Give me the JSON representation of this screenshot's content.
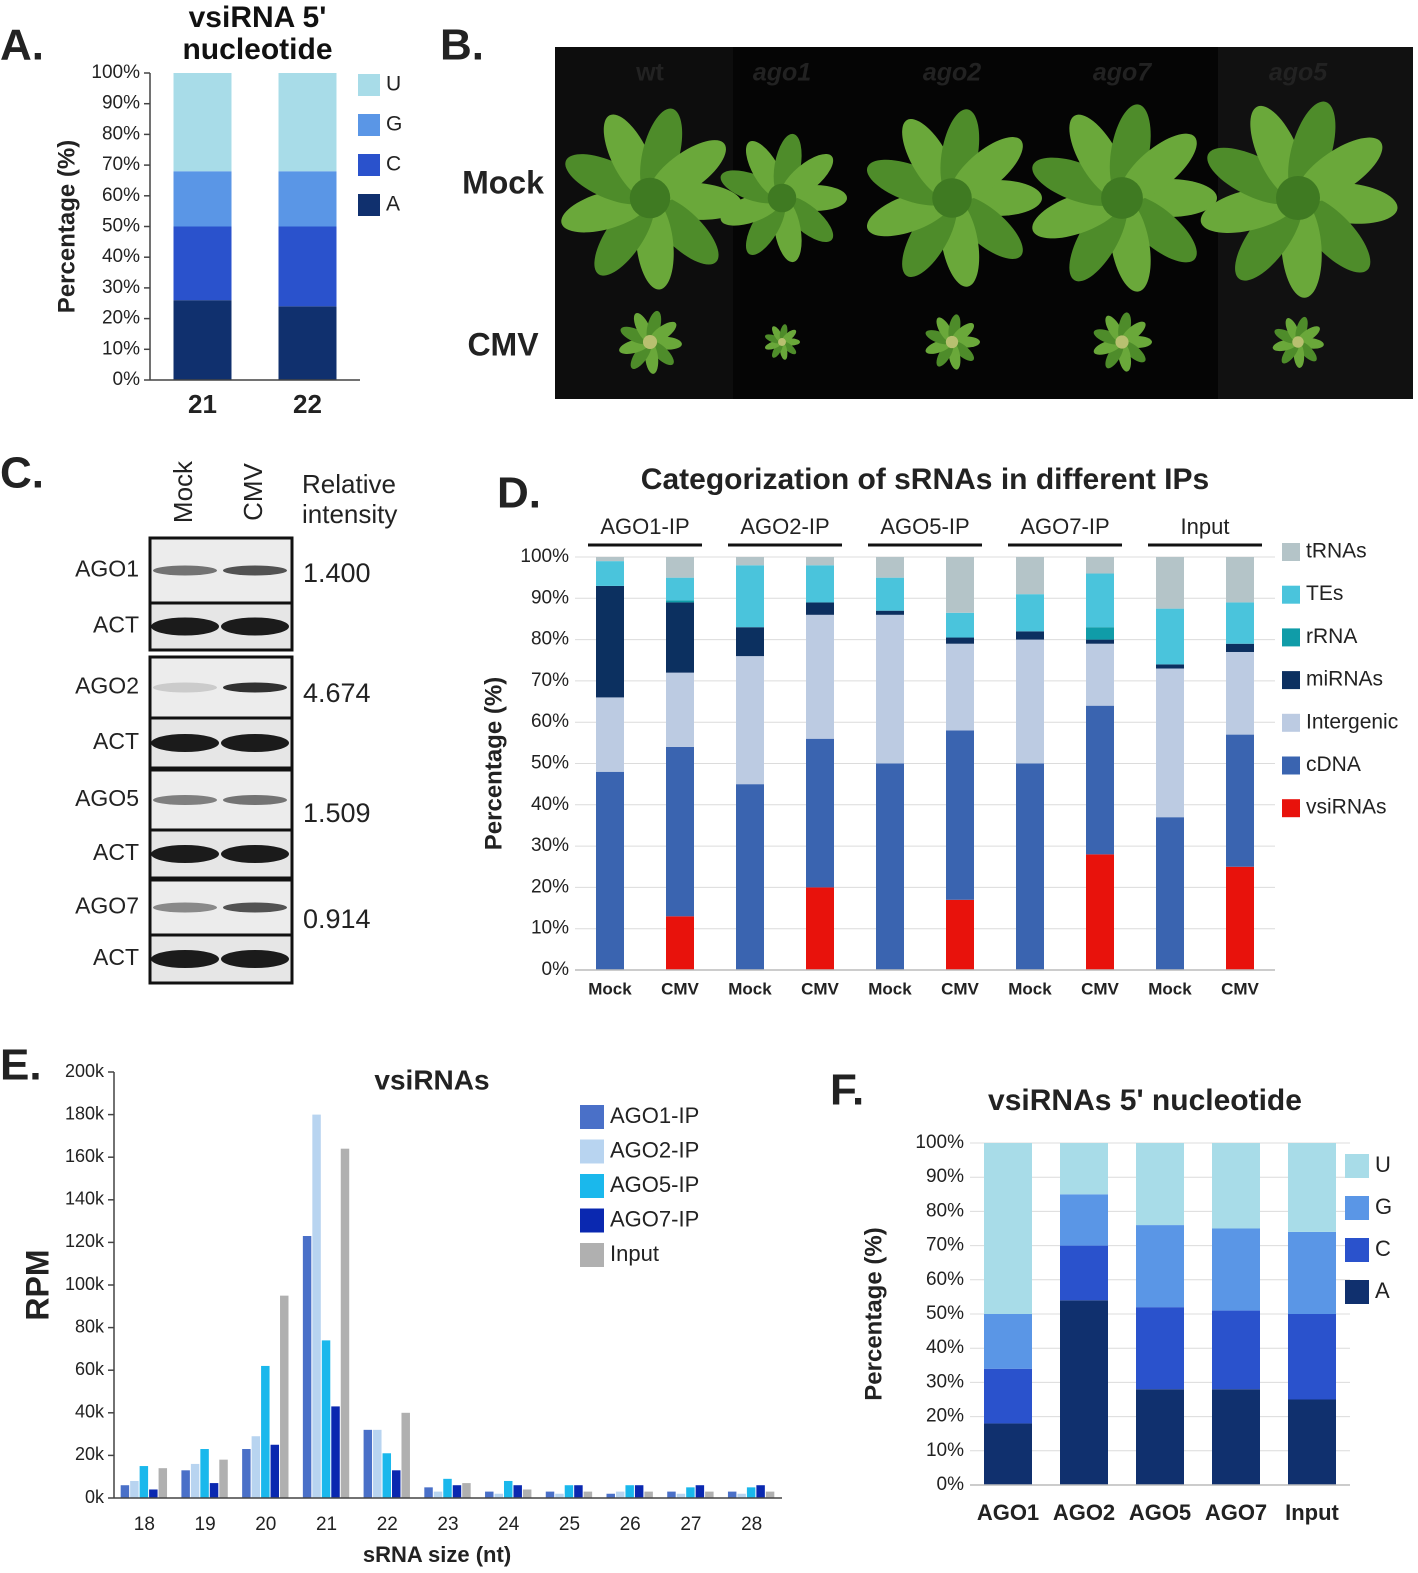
{
  "chart_data": [
    {
      "type": "stacked_bar",
      "panel": "A.",
      "title": "vsiRNA 5' nucleotide",
      "ylabel": "Percentage (%)",
      "categories": [
        "21",
        "22"
      ],
      "series": [
        {
          "name": "A",
          "color": "#10306e",
          "values": [
            26,
            24
          ]
        },
        {
          "name": "C",
          "color": "#2a52cc",
          "values": [
            24,
            26
          ]
        },
        {
          "name": "G",
          "color": "#5a96e6",
          "values": [
            18,
            18
          ]
        },
        {
          "name": "U",
          "color": "#a8dce8",
          "values": [
            32,
            32
          ]
        }
      ],
      "ylim": [
        0,
        100
      ],
      "yticks": [
        {
          "value": 0,
          "label": "0%"
        },
        {
          "value": 10,
          "label": "10%"
        },
        {
          "value": 20,
          "label": "20%"
        },
        {
          "value": 30,
          "label": "30%"
        },
        {
          "value": 40,
          "label": "40%"
        },
        {
          "value": 50,
          "label": "50%"
        },
        {
          "value": 60,
          "label": "60%"
        },
        {
          "value": 70,
          "label": "70%"
        },
        {
          "value": 80,
          "label": "80%"
        },
        {
          "value": 90,
          "label": "90%"
        },
        {
          "value": 100,
          "label": "100%"
        }
      ],
      "grid": false
    },
    {
      "type": "stacked_bar",
      "panel": "D.",
      "title": "Categorization of sRNAs in different IPs",
      "ylabel": "Percentage (%)",
      "groups": [
        "AGO1-IP",
        "AGO2-IP",
        "AGO5-IP",
        "AGO7-IP",
        "Input"
      ],
      "categories": [
        "Mock",
        "CMV",
        "Mock",
        "CMV",
        "Mock",
        "CMV",
        "Mock",
        "CMV",
        "Mock",
        "CMV"
      ],
      "series": [
        {
          "name": "vsiRNAs",
          "color": "#e8120c",
          "values": [
            0,
            13,
            0,
            20,
            0,
            17,
            0,
            28,
            0,
            25
          ]
        },
        {
          "name": "cDNA",
          "color": "#3a64b0",
          "values": [
            48,
            41,
            45,
            36,
            50,
            41,
            50,
            36,
            37,
            32
          ]
        },
        {
          "name": "Intergenic",
          "color": "#bccbe2",
          "values": [
            18,
            18,
            31,
            30,
            36,
            21,
            30,
            15,
            36,
            20
          ]
        },
        {
          "name": "miRNAs",
          "color": "#0c3060",
          "values": [
            27,
            17,
            7,
            3,
            1,
            1.5,
            2,
            1,
            1,
            2
          ]
        },
        {
          "name": "rRNA",
          "color": "#109ca8",
          "values": [
            0,
            0.5,
            0,
            0,
            0,
            0,
            0,
            3,
            0,
            0
          ]
        },
        {
          "name": "TEs",
          "color": "#4ac4dc",
          "values": [
            6,
            5.5,
            15,
            9,
            8,
            6,
            9,
            13,
            13.5,
            10
          ]
        },
        {
          "name": "tRNAs",
          "color": "#b4c4c8",
          "values": [
            1,
            5,
            2,
            2,
            5,
            13.5,
            9,
            4,
            12.5,
            11
          ]
        }
      ],
      "ylim": [
        0,
        100
      ],
      "yticks": [
        {
          "value": 0,
          "label": "0%"
        },
        {
          "value": 10,
          "label": "10%"
        },
        {
          "value": 20,
          "label": "20%"
        },
        {
          "value": 30,
          "label": "30%"
        },
        {
          "value": 40,
          "label": "40%"
        },
        {
          "value": 50,
          "label": "50%"
        },
        {
          "value": 60,
          "label": "60%"
        },
        {
          "value": 70,
          "label": "70%"
        },
        {
          "value": 80,
          "label": "80%"
        },
        {
          "value": 90,
          "label": "90%"
        },
        {
          "value": 100,
          "label": "100%"
        }
      ],
      "grid": true
    },
    {
      "type": "grouped_bar",
      "panel": "E.",
      "title": "vsiRNAs",
      "ylabel": "RPM",
      "xlabel": "sRNA size (nt)",
      "categories": [
        "18",
        "19",
        "20",
        "21",
        "22",
        "23",
        "24",
        "25",
        "26",
        "27",
        "28"
      ],
      "series": [
        {
          "name": "AGO1-IP",
          "color": "#4a70c8",
          "values": [
            6000,
            13000,
            23000,
            123000,
            32000,
            5000,
            3000,
            3000,
            2000,
            3000,
            3000
          ]
        },
        {
          "name": "AGO2-IP",
          "color": "#b8d4f0",
          "values": [
            8000,
            16000,
            29000,
            180000,
            32000,
            3000,
            2000,
            2000,
            3000,
            2000,
            2000
          ]
        },
        {
          "name": "AGO5-IP",
          "color": "#1ab8ec",
          "values": [
            15000,
            23000,
            62000,
            74000,
            21000,
            9000,
            8000,
            6000,
            6000,
            5000,
            5000
          ]
        },
        {
          "name": "AGO7-IP",
          "color": "#0a28b0",
          "values": [
            4000,
            7000,
            25000,
            43000,
            13000,
            6000,
            6000,
            6000,
            6000,
            6000,
            6000
          ]
        },
        {
          "name": "Input",
          "color": "#b0b0b0",
          "values": [
            14000,
            18000,
            95000,
            164000,
            40000,
            7000,
            4000,
            3000,
            3000,
            3000,
            3000
          ]
        }
      ],
      "ylim": [
        0,
        200000
      ],
      "yticks": [
        {
          "value": 0,
          "label": "0k"
        },
        {
          "value": 20000,
          "label": "20k"
        },
        {
          "value": 40000,
          "label": "40k"
        },
        {
          "value": 60000,
          "label": "60k"
        },
        {
          "value": 80000,
          "label": "80k"
        },
        {
          "value": 100000,
          "label": "100k"
        },
        {
          "value": 120000,
          "label": "120k"
        },
        {
          "value": 140000,
          "label": "140k"
        },
        {
          "value": 160000,
          "label": "160k"
        },
        {
          "value": 180000,
          "label": "180k"
        },
        {
          "value": 200000,
          "label": "200k"
        }
      ],
      "grid": false
    },
    {
      "type": "stacked_bar",
      "panel": "F.",
      "title": "vsiRNAs 5' nucleotide",
      "ylabel": "Percentage (%)",
      "categories": [
        "AGO1",
        "AGO2",
        "AGO5",
        "AGO7",
        "Input"
      ],
      "series": [
        {
          "name": "A",
          "color": "#10306e",
          "values": [
            18,
            54,
            28,
            28,
            25
          ]
        },
        {
          "name": "C",
          "color": "#2a52cc",
          "values": [
            16,
            16,
            24,
            23,
            25
          ]
        },
        {
          "name": "G",
          "color": "#5a96e6",
          "values": [
            16,
            15,
            24,
            24,
            24
          ]
        },
        {
          "name": "U",
          "color": "#a8dce8",
          "values": [
            50,
            15,
            24,
            25,
            26
          ]
        }
      ],
      "ylim": [
        0,
        100
      ],
      "yticks": [
        {
          "value": 0,
          "label": "0%"
        },
        {
          "value": 10,
          "label": "10%"
        },
        {
          "value": 20,
          "label": "20%"
        },
        {
          "value": 30,
          "label": "30%"
        },
        {
          "value": 40,
          "label": "40%"
        },
        {
          "value": 50,
          "label": "50%"
        },
        {
          "value": 60,
          "label": "60%"
        },
        {
          "value": 70,
          "label": "70%"
        },
        {
          "value": 80,
          "label": "80%"
        },
        {
          "value": 90,
          "label": "90%"
        },
        {
          "value": 100,
          "label": "100%"
        }
      ],
      "grid": true
    }
  ],
  "panel_b": {
    "panel": "B.",
    "columns": [
      "wt",
      "ago1",
      "ago2",
      "ago7",
      "ago5"
    ],
    "rows": [
      "Mock",
      "CMV"
    ]
  },
  "panel_c": {
    "panel": "C.",
    "columns": [
      "Mock",
      "CMV"
    ],
    "header": "Relative intensity",
    "rows": [
      {
        "protein": "AGO1",
        "loading": "ACT",
        "intensity": "1.400"
      },
      {
        "protein": "AGO2",
        "loading": "ACT",
        "intensity": "4.674"
      },
      {
        "protein": "AGO5",
        "loading": "ACT",
        "intensity": "1.509"
      },
      {
        "protein": "AGO7",
        "loading": "ACT",
        "intensity": "0.914"
      }
    ]
  }
}
